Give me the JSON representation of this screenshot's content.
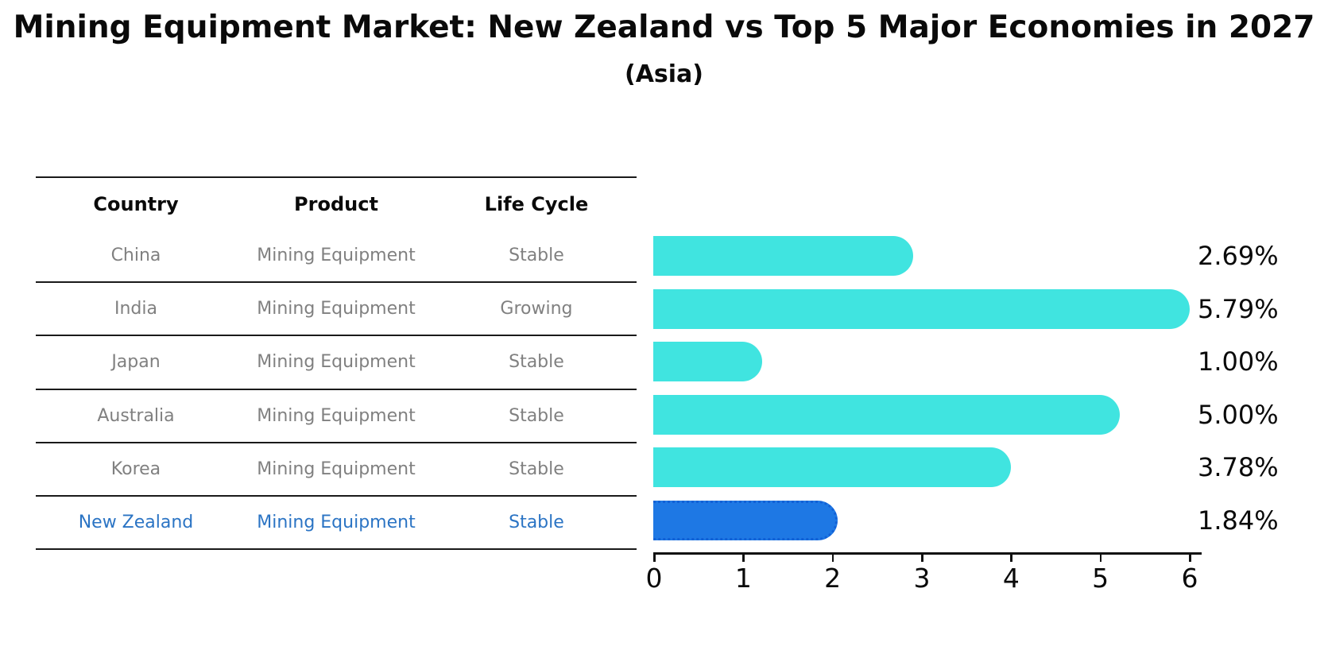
{
  "chart_data": {
    "type": "bar",
    "orientation": "horizontal",
    "title": "Mining Equipment Market: New Zealand vs Top 5 Major Economies in 2027",
    "subtitle": "(Asia)",
    "categories": [
      "China",
      "India",
      "Japan",
      "Australia",
      "Korea",
      "New Zealand"
    ],
    "values": [
      2.69,
      5.79,
      1.0,
      5.0,
      3.78,
      1.84
    ],
    "value_labels": [
      "2.69%",
      "5.79%",
      "1.00%",
      "5.00%",
      "3.78%",
      "1.84%"
    ],
    "highlight_index": 5,
    "xlim": [
      0,
      6
    ],
    "x_ticks": [
      "0",
      "1",
      "2",
      "3",
      "4",
      "5",
      "6"
    ],
    "grid": false,
    "legend": "none",
    "table": {
      "columns": [
        "Country",
        "Product",
        "Life Cycle"
      ],
      "rows": [
        [
          "China",
          "Mining Equipment",
          "Stable"
        ],
        [
          "India",
          "Mining Equipment",
          "Growing"
        ],
        [
          "Japan",
          "Mining Equipment",
          "Stable"
        ],
        [
          "Australia",
          "Mining Equipment",
          "Stable"
        ],
        [
          "Korea",
          "Mining Equipment",
          "Stable"
        ],
        [
          "New Zealand",
          "Mining Equipment",
          "Stable"
        ]
      ]
    },
    "colors": {
      "bar_default": "#40e4e0",
      "bar_highlight": "#1e78e4",
      "highlight_text": "#2b74c4",
      "row_text": "#808080",
      "header_text": "#0a0a0a",
      "line": "#1a1a1a"
    }
  }
}
